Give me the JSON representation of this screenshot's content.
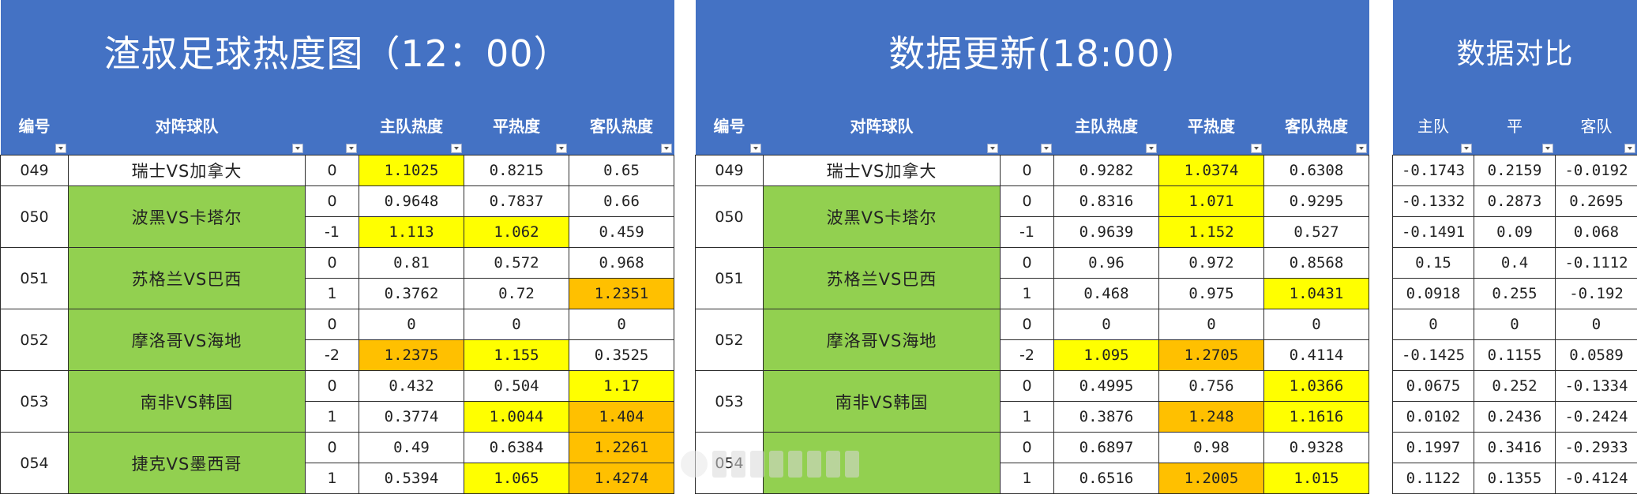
{
  "panels": [
    {
      "title": "渣叔足球热度图（12：00）",
      "headers": [
        "编号",
        "对阵球队",
        "",
        "主队热度",
        "平热度",
        "客队热度"
      ],
      "matches": [
        {
          "code": "049",
          "team": "瑞士VS加拿大",
          "rows": [
            {
              "handicap": "0",
              "home": "1.1025",
              "draw": "0.8215",
              "away": "0.65"
            }
          ]
        },
        {
          "code": "050",
          "team": "波黑VS卡塔尔",
          "rows": [
            {
              "handicap": "0",
              "home": "0.9648",
              "draw": "0.7837",
              "away": "0.66"
            },
            {
              "handicap": "-1",
              "home": "1.113",
              "draw": "1.062",
              "away": "0.459"
            }
          ]
        },
        {
          "code": "051",
          "team": "苏格兰VS巴西",
          "rows": [
            {
              "handicap": "0",
              "home": "0.81",
              "draw": "0.572",
              "away": "0.968"
            },
            {
              "handicap": "1",
              "home": "0.3762",
              "draw": "0.72",
              "away": "1.2351"
            }
          ]
        },
        {
          "code": "052",
          "team": "摩洛哥VS海地",
          "rows": [
            {
              "handicap": "0",
              "home": "0",
              "draw": "0",
              "away": "0"
            },
            {
              "handicap": "-2",
              "home": "1.2375",
              "draw": "1.155",
              "away": "0.3525"
            }
          ]
        },
        {
          "code": "053",
          "team": "南非VS韩国",
          "rows": [
            {
              "handicap": "0",
              "home": "0.432",
              "draw": "0.504",
              "away": "1.17"
            },
            {
              "handicap": "1",
              "home": "0.3774",
              "draw": "1.0044",
              "away": "1.404"
            }
          ]
        },
        {
          "code": "054",
          "team": "捷克VS墨西哥",
          "rows": [
            {
              "handicap": "0",
              "home": "0.49",
              "draw": "0.6384",
              "away": "1.2261"
            },
            {
              "handicap": "1",
              "home": "0.5394",
              "draw": "1.065",
              "away": "1.4274"
            }
          ]
        }
      ]
    },
    {
      "title": "数据更新(18:00)",
      "headers": [
        "编号",
        "对阵球队",
        "",
        "主队热度",
        "平热度",
        "客队热度"
      ],
      "matches": [
        {
          "code": "049",
          "team": "瑞士VS加拿大",
          "rows": [
            {
              "handicap": "0",
              "home": "0.9282",
              "draw": "1.0374",
              "away": "0.6308"
            }
          ]
        },
        {
          "code": "050",
          "team": "波黑VS卡塔尔",
          "rows": [
            {
              "handicap": "0",
              "home": "0.8316",
              "draw": "1.071",
              "away": "0.9295"
            },
            {
              "handicap": "-1",
              "home": "0.9639",
              "draw": "1.152",
              "away": "0.527"
            }
          ]
        },
        {
          "code": "051",
          "team": "苏格兰VS巴西",
          "rows": [
            {
              "handicap": "0",
              "home": "0.96",
              "draw": "0.972",
              "away": "0.8568"
            },
            {
              "handicap": "1",
              "home": "0.468",
              "draw": "0.975",
              "away": "1.0431"
            }
          ]
        },
        {
          "code": "052",
          "team": "摩洛哥VS海地",
          "rows": [
            {
              "handicap": "0",
              "home": "0",
              "draw": "0",
              "away": "0"
            },
            {
              "handicap": "-2",
              "home": "1.095",
              "draw": "1.2705",
              "away": "0.4114"
            }
          ]
        },
        {
          "code": "053",
          "team": "南非VS韩国",
          "rows": [
            {
              "handicap": "0",
              "home": "0.4995",
              "draw": "0.756",
              "away": "1.0366"
            },
            {
              "handicap": "1",
              "home": "0.3876",
              "draw": "1.248",
              "away": "1.1616"
            }
          ]
        },
        {
          "code": "054",
          "team": "",
          "rows": [
            {
              "handicap": "0",
              "home": "0.6897",
              "draw": "0.98",
              "away": "0.9328"
            },
            {
              "handicap": "1",
              "home": "0.6516",
              "draw": "1.2005",
              "away": "1.015"
            }
          ]
        }
      ]
    }
  ],
  "comparison": {
    "title": "数据对比",
    "headers": [
      "主队",
      "平",
      "客队"
    ],
    "rows": [
      [
        "-0.1743",
        "0.2159",
        "-0.0192"
      ],
      [
        "-0.1332",
        "0.2873",
        "0.2695"
      ],
      [
        "-0.1491",
        "0.09",
        "0.068"
      ],
      [
        "0.15",
        "0.4",
        "-0.1112"
      ],
      [
        "0.0918",
        "0.255",
        "-0.192"
      ],
      [
        "0",
        "0",
        "0"
      ],
      [
        "-0.1425",
        "0.1155",
        "0.0589"
      ],
      [
        "0.0675",
        "0.252",
        "-0.1334"
      ],
      [
        "0.0102",
        "0.2436",
        "-0.2424"
      ],
      [
        "0.1997",
        "0.3416",
        "-0.2933"
      ],
      [
        "0.1122",
        "0.1355",
        "-0.4124"
      ]
    ]
  },
  "colors": {
    "header_blue": "#4472c4",
    "team_green": "#92d050",
    "highlight_yellow": "#ffff00",
    "highlight_orange": "#ffc000"
  },
  "highlights": {
    "panel0": [
      [
        "yellow",
        "",
        ""
      ],
      [
        "",
        "",
        ""
      ],
      [
        "yellow",
        "yellow",
        ""
      ],
      [
        "",
        "",
        ""
      ],
      [
        "",
        "",
        "orange"
      ],
      [
        "",
        "",
        ""
      ],
      [
        "orange",
        "yellow",
        ""
      ],
      [
        "",
        "",
        "yellow"
      ],
      [
        "",
        "yellow",
        "orange"
      ],
      [
        "",
        "",
        "orange"
      ],
      [
        "",
        "yellow",
        "orange"
      ]
    ],
    "panel1": [
      [
        "",
        "yellow",
        ""
      ],
      [
        "",
        "yellow",
        ""
      ],
      [
        "",
        "yellow",
        ""
      ],
      [
        "",
        "",
        ""
      ],
      [
        "",
        "",
        "yellow"
      ],
      [
        "",
        "",
        ""
      ],
      [
        "yellow",
        "orange",
        ""
      ],
      [
        "",
        "",
        "yellow"
      ],
      [
        "",
        "orange",
        "yellow"
      ],
      [
        "",
        "",
        ""
      ],
      [
        "",
        "orange",
        "yellow"
      ]
    ]
  },
  "team_green": {
    "panel0": [
      false,
      true,
      true,
      true,
      true,
      true
    ],
    "panel1": [
      false,
      true,
      true,
      true,
      true,
      true
    ]
  }
}
